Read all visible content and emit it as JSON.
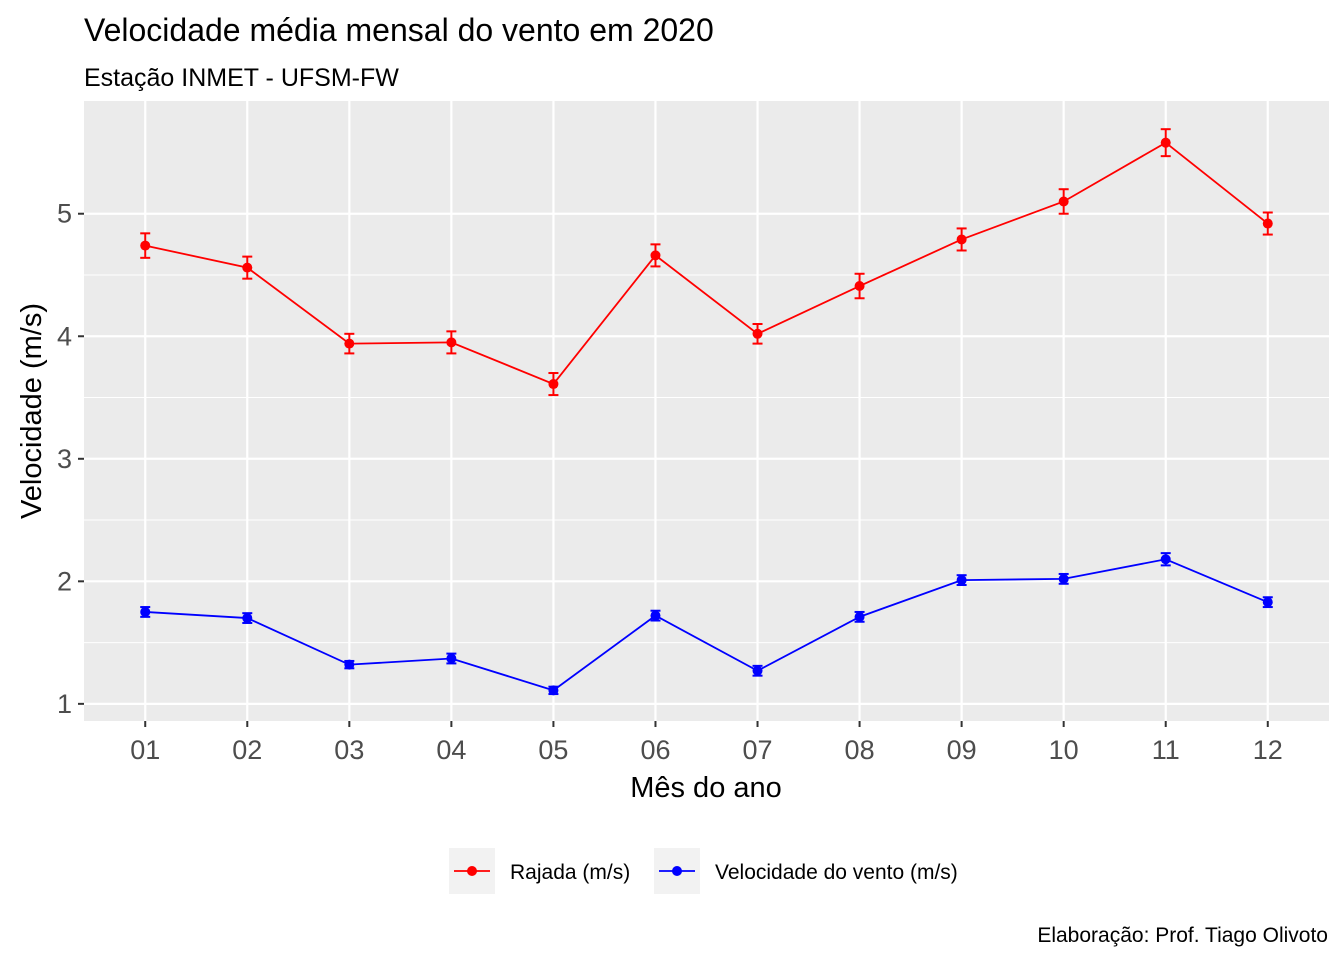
{
  "chart_data": {
    "type": "line",
    "title": "Velocidade média mensal do vento em 2020",
    "subtitle": "Estação INMET - UFSM-FW",
    "xlabel": "Mês do ano",
    "ylabel": "Velocidade (m/s)",
    "caption": "Elaboração: Prof. Tiago Olivoto",
    "categories": [
      "01",
      "02",
      "03",
      "04",
      "05",
      "06",
      "07",
      "08",
      "09",
      "10",
      "11",
      "12"
    ],
    "ylim": [
      0.86,
      5.92
    ],
    "yticks": [
      1,
      2,
      3,
      4,
      5
    ],
    "grid": true,
    "legend_position": "bottom",
    "series": [
      {
        "name": "Rajada (m/s)",
        "color": "#ff0000",
        "values": [
          4.74,
          4.56,
          3.94,
          3.95,
          3.61,
          4.66,
          4.02,
          4.41,
          4.79,
          5.1,
          5.58,
          4.92
        ],
        "error": [
          0.1,
          0.09,
          0.08,
          0.09,
          0.09,
          0.09,
          0.08,
          0.1,
          0.09,
          0.1,
          0.11,
          0.09
        ]
      },
      {
        "name": "Velocidade do vento (m/s)",
        "color": "#0000ff",
        "values": [
          1.75,
          1.7,
          1.32,
          1.37,
          1.11,
          1.72,
          1.27,
          1.71,
          2.01,
          2.02,
          2.18,
          1.83
        ],
        "error": [
          0.04,
          0.04,
          0.03,
          0.04,
          0.03,
          0.04,
          0.04,
          0.04,
          0.04,
          0.04,
          0.05,
          0.04
        ]
      }
    ]
  }
}
